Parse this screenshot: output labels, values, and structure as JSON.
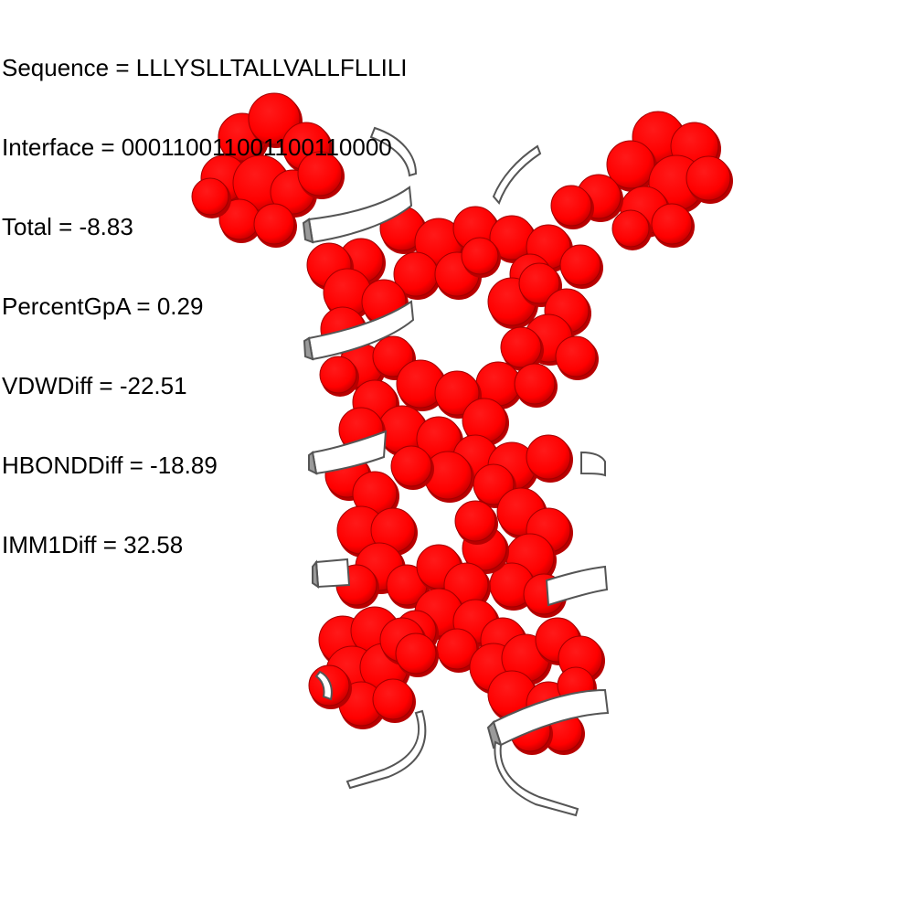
{
  "info": {
    "sequence": "Sequence = LLLYSLLTALLVALLFLLILI",
    "interface": "Interface = 000110011001100110000",
    "total": "Total = -8.83",
    "percent_gpa": "PercentGpA = 0.29",
    "vdw_diff": "VDWDiff = -22.51",
    "hbond_diff": "HBONDDiff = -18.89",
    "imm1_diff": "IMM1Diff = 32.58"
  },
  "colors": {
    "atom_fill": "#ff0000",
    "atom_shadow": "#b80000",
    "ribbon_face": "#ffffff",
    "ribbon_edge": "#555555",
    "ribbon_shade": "#9a9a9a"
  }
}
